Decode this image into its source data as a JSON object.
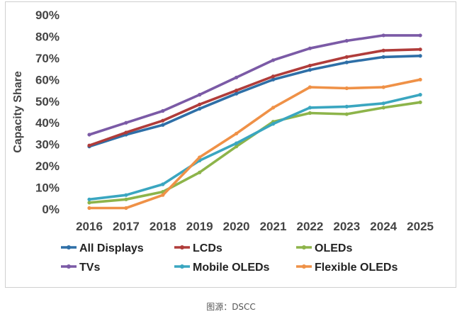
{
  "caption": "图源：DSCC",
  "chart_data": {
    "type": "line",
    "title": "",
    "xlabel": "",
    "ylabel": "Capacity Share",
    "ylim": [
      0,
      90
    ],
    "yticks": [
      "0%",
      "10%",
      "20%",
      "30%",
      "40%",
      "50%",
      "60%",
      "70%",
      "80%",
      "90%"
    ],
    "categories": [
      "2016",
      "2017",
      "2018",
      "2019",
      "2020",
      "2021",
      "2022",
      "2023",
      "2024",
      "2025"
    ],
    "series": [
      {
        "name": "All Displays",
        "color": "#2e6fa7",
        "values": [
          29,
          34.5,
          39,
          46.5,
          53.5,
          60,
          64.5,
          68,
          70.5,
          71
        ]
      },
      {
        "name": "LCDs",
        "color": "#b03c3a",
        "values": [
          29.5,
          35.5,
          41,
          48.5,
          55,
          61.5,
          66.5,
          70.5,
          73.5,
          74
        ]
      },
      {
        "name": "OLEDs",
        "color": "#8db44a",
        "values": [
          3,
          4.5,
          8,
          17,
          29,
          40.5,
          44.5,
          44,
          47,
          49.5
        ]
      },
      {
        "name": "TVs",
        "color": "#7b5aa6",
        "values": [
          34.5,
          40,
          45.5,
          53,
          61,
          69,
          74.5,
          78,
          80.5,
          80.5
        ]
      },
      {
        "name": "Mobile OLEDs",
        "color": "#3aa6c0",
        "values": [
          4.5,
          6.5,
          11.5,
          22.5,
          30.5,
          39.5,
          47,
          47.5,
          49,
          53
        ]
      },
      {
        "name": "Flexible OLEDs",
        "color": "#ef9147",
        "values": [
          0.5,
          0.5,
          6.5,
          24,
          35,
          47,
          56.5,
          56,
          56.5,
          60
        ]
      }
    ],
    "legend_position": "bottom",
    "grid": false
  }
}
